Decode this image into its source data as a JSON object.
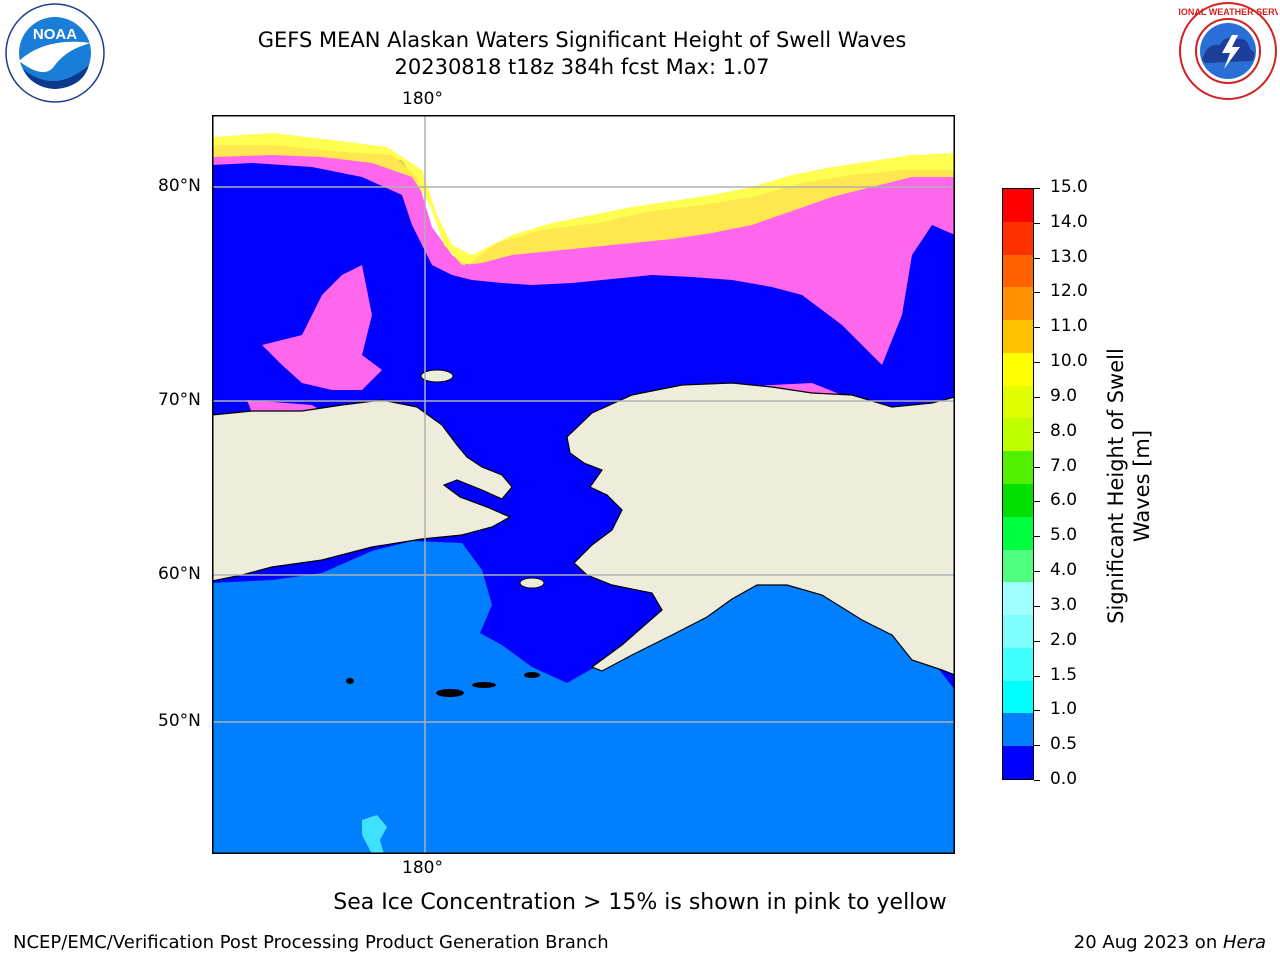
{
  "header": {
    "title_line1": "GEFS MEAN Alaskan Waters Significant Height of Swell Waves",
    "title_line2": "20230818 t18z 384h fcst   Max: 1.07"
  },
  "logos": {
    "left": {
      "text": "NOAA",
      "ring_text": "NATIONAL OCEANIC AND ATMOSPHERIC ADMINISTRATION · U.S. DEPARTMENT OF COMMERCE"
    },
    "right": {
      "ring_text": "NATIONAL WEATHER SERVICE"
    }
  },
  "map": {
    "lon_label_top": "180°",
    "lon_label_bottom": "180°",
    "lat_labels": [
      "80°N",
      "70°N",
      "60°N",
      "50°N"
    ],
    "colors": {
      "land": "#eeeddc",
      "ocean_swell_low": "#0000ff",
      "ocean_swell_mid": "#0080ff",
      "ice_pink": "#ff66ee",
      "ice_yellow": "#ffff33",
      "grid": "#b0b0b0"
    }
  },
  "colorbar": {
    "title_line1": "Significant Height of Swell",
    "title_line2": "Waves [m]",
    "ticks": [
      "15.0",
      "14.0",
      "13.0",
      "12.0",
      "11.0",
      "10.0",
      "9.0",
      "8.0",
      "7.0",
      "6.0",
      "5.0",
      "4.0",
      "3.0",
      "2.0",
      "1.5",
      "1.0",
      "0.5",
      "0.0"
    ],
    "colors_bottom_to_top": [
      "#0000ff",
      "#0080ff",
      "#00ffff",
      "#40ffff",
      "#80ffff",
      "#a0ffff",
      "#50ff80",
      "#00ff40",
      "#00e000",
      "#50f000",
      "#c0ff00",
      "#e0ff00",
      "#ffff00",
      "#ffc000",
      "#ff9000",
      "#ff6000",
      "#ff3000",
      "#ff0000"
    ]
  },
  "note": "Sea Ice Concentration > 15% is shown in pink to yellow",
  "footer": {
    "left": "NCEP/EMC/Verification Post Processing Product Generation Branch",
    "right_prefix": "20 Aug 2023 on ",
    "right_italic": "Hera"
  }
}
